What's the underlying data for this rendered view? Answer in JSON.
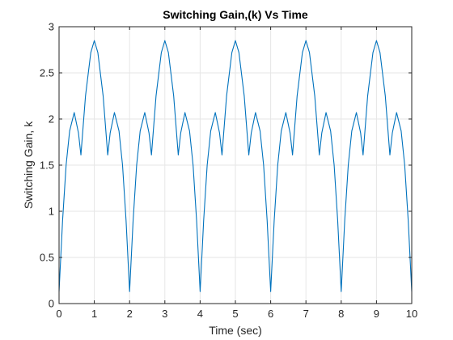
{
  "chart_data": {
    "type": "line",
    "title": "Switching Gain,(k) Vs Time",
    "xlabel": "Time (sec)",
    "ylabel": "Switching Gain, k",
    "xlim": [
      0,
      10
    ],
    "ylim": [
      0,
      3
    ],
    "xticks": [
      "0",
      "1",
      "2",
      "3",
      "4",
      "5",
      "6",
      "7",
      "8",
      "9",
      "10"
    ],
    "yticks": [
      "0",
      "0.5",
      "1",
      "1.5",
      "2",
      "2.5",
      "3"
    ],
    "grid": true,
    "line_color": "#0072bd",
    "series": [
      {
        "x": [
          0,
          0.1,
          0.2,
          0.3,
          0.43,
          0.55,
          0.62,
          0.75,
          0.9,
          1.0,
          1.1,
          1.25,
          1.38,
          1.45,
          1.57,
          1.7,
          1.8,
          1.9,
          2.0,
          2.1,
          2.2,
          2.3,
          2.43,
          2.55,
          2.62,
          2.75,
          2.9,
          3.0,
          3.1,
          3.25,
          3.38,
          3.45,
          3.57,
          3.7,
          3.8,
          3.9,
          4.0,
          4.1,
          4.2,
          4.3,
          4.43,
          4.55,
          4.62,
          4.75,
          4.9,
          5.0,
          5.1,
          5.25,
          5.38,
          5.45,
          5.57,
          5.7,
          5.8,
          5.9,
          6.0,
          6.1,
          6.2,
          6.3,
          6.43,
          6.55,
          6.62,
          6.75,
          6.9,
          7.0,
          7.1,
          7.25,
          7.38,
          7.45,
          7.57,
          7.7,
          7.8,
          7.9,
          8.0,
          8.1,
          8.2,
          8.3,
          8.43,
          8.55,
          8.62,
          8.75,
          8.9,
          9.0,
          9.1,
          9.25,
          9.38,
          9.45,
          9.57,
          9.7,
          9.8,
          9.9,
          10.0
        ],
        "y": [
          0.13,
          0.9,
          1.5,
          1.87,
          2.07,
          1.85,
          1.61,
          2.25,
          2.72,
          2.85,
          2.72,
          2.25,
          1.61,
          1.85,
          2.07,
          1.87,
          1.5,
          0.9,
          0.13,
          0.9,
          1.5,
          1.87,
          2.07,
          1.85,
          1.61,
          2.25,
          2.72,
          2.85,
          2.72,
          2.25,
          1.61,
          1.85,
          2.07,
          1.87,
          1.5,
          0.9,
          0.13,
          0.9,
          1.5,
          1.87,
          2.07,
          1.85,
          1.61,
          2.25,
          2.72,
          2.85,
          2.72,
          2.25,
          1.61,
          1.85,
          2.07,
          1.87,
          1.5,
          0.9,
          0.13,
          0.9,
          1.5,
          1.87,
          2.07,
          1.85,
          1.61,
          2.25,
          2.72,
          2.85,
          2.72,
          2.25,
          1.61,
          1.85,
          2.07,
          1.87,
          1.5,
          0.9,
          0.13,
          0.9,
          1.5,
          1.87,
          2.07,
          1.85,
          1.61,
          2.25,
          2.72,
          2.85,
          2.72,
          2.25,
          1.61,
          1.85,
          2.07,
          1.87,
          1.5,
          0.9,
          0.13
        ]
      }
    ]
  }
}
